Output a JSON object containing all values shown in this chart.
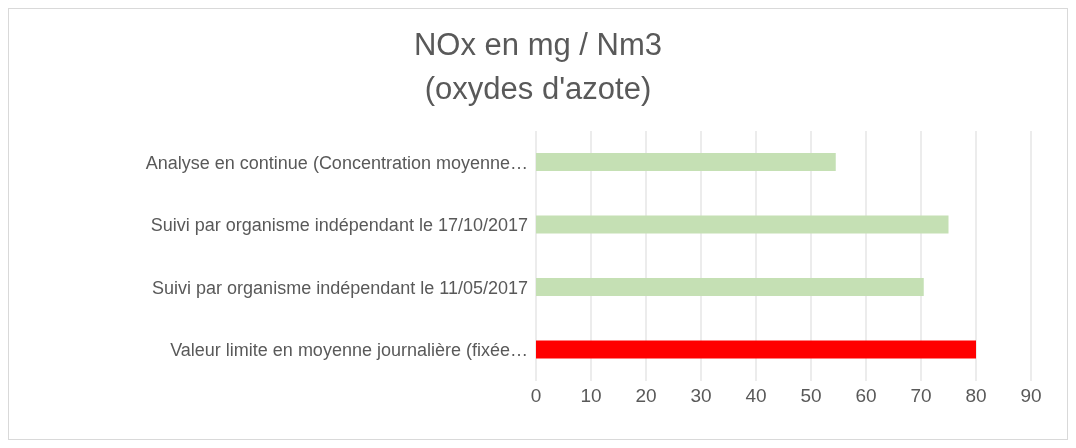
{
  "chart_data": {
    "type": "bar",
    "orientation": "horizontal",
    "title": "NOx en  mg / Nm3",
    "subtitle": "(oxydes d'azote)",
    "categories": [
      "Analyse en continue (Concentration moyenne…",
      "Suivi par organisme indépendant le 17/10/2017",
      "Suivi par organisme indépendant le 11/05/2017",
      "Valeur limite en moyenne journalière  (fixée…"
    ],
    "values": [
      54.5,
      75,
      70.5,
      80
    ],
    "colors": [
      "#c5e0b4",
      "#c5e0b4",
      "#c5e0b4",
      "#ff0000"
    ],
    "xlim": [
      0,
      90
    ],
    "xticks": [
      0,
      10,
      20,
      30,
      40,
      50,
      60,
      70,
      80,
      90
    ],
    "grid": "x",
    "legend": false
  }
}
